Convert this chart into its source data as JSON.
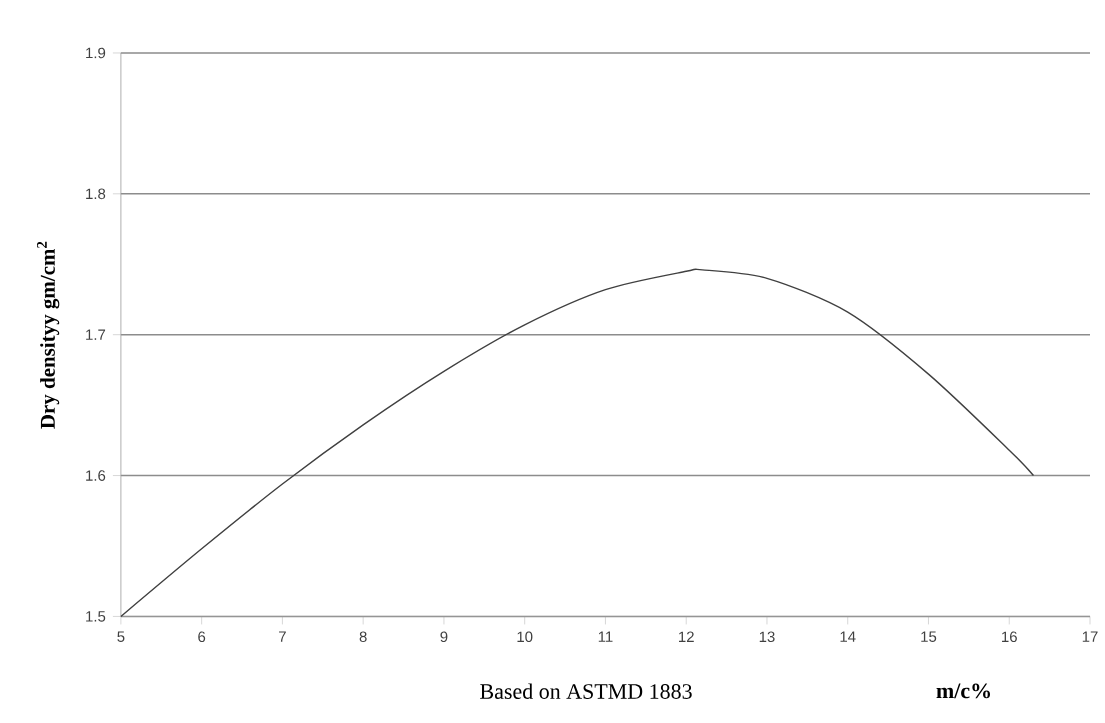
{
  "chart_data": {
    "type": "line",
    "xlabel": "m/c%",
    "ylabel": "Dry densityy gm/cm$^{2}$",
    "annotations": [
      "Based on ASTMD 1883"
    ],
    "x": [
      5,
      6,
      7,
      8,
      9,
      10,
      11,
      12,
      12.2,
      13,
      14,
      15,
      16,
      16.3
    ],
    "values": [
      1.5,
      1.548,
      1.594,
      1.636,
      1.674,
      1.707,
      1.732,
      1.745,
      1.746,
      1.74,
      1.716,
      1.672,
      1.618,
      1.6
    ],
    "color": "#404040",
    "marker": "none",
    "xlim": [
      5,
      17
    ],
    "ylim": [
      1.5,
      1.9
    ],
    "xticks": [
      5,
      6,
      7,
      8,
      9,
      10,
      11,
      12,
      13,
      14,
      15,
      16,
      17
    ],
    "yticks": [
      1.5,
      1.6,
      1.7,
      1.8,
      1.9
    ],
    "grid": "y"
  }
}
